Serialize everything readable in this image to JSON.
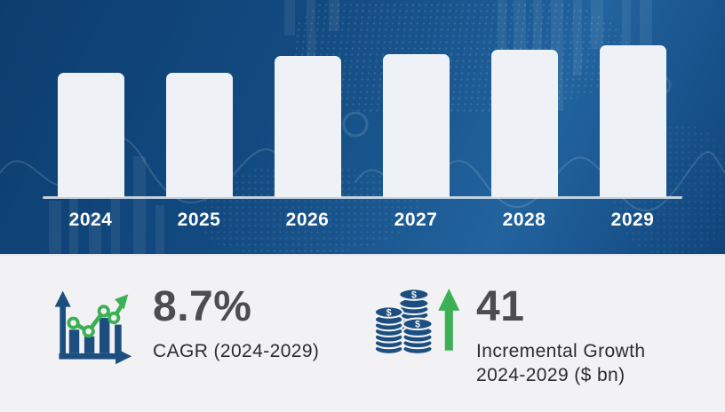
{
  "theme": {
    "top_background_blue": "#11497f",
    "bottom_background": "#f2f2f4",
    "bar_fill": "#eef1f5",
    "axis_line_color": "#e1e8f0",
    "year_label_color": "#ffffff",
    "stat_value_color": "#4d4d4f",
    "stat_label_color": "#2c2c2e",
    "icon_blue": "#1c4f80",
    "icon_green": "#3cb054"
  },
  "chart_data": {
    "type": "bar",
    "title": "",
    "xlabel": "",
    "ylabel": "",
    "categories": [
      "2024",
      "2025",
      "2026",
      "2027",
      "2028",
      "2029"
    ],
    "values": [
      0.82,
      0.82,
      0.93,
      0.94,
      0.97,
      1.0
    ],
    "ylim": [
      0,
      1
    ],
    "grid": false,
    "legend": false,
    "value_labels_shown": false,
    "note_units": "relative bar heights; no y-axis values shown in image"
  },
  "stats": [
    {
      "id": "cagr",
      "icon": "growth-bar-chart-icon",
      "value": "8.7%",
      "label_lines": [
        "CAGR (2024-2029)"
      ]
    },
    {
      "id": "incremental-growth",
      "icon": "coin-stack-up-arrow-icon",
      "value": "41",
      "label_lines": [
        "Incremental Growth",
        "2024-2029 ($ bn)"
      ]
    }
  ]
}
